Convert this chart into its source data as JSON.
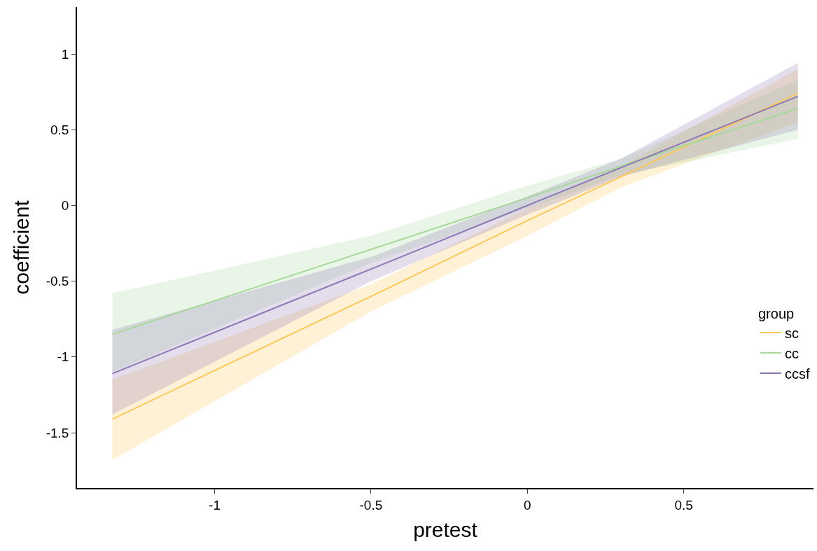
{
  "chart_data": {
    "type": "line",
    "xlabel": "pretest",
    "ylabel": "coefficient",
    "legend_title": "group",
    "legend": "right",
    "xlim": [
      -1.44,
      0.915
    ],
    "xticks": [
      -1,
      -0.5,
      0,
      0.5
    ],
    "ylim": [
      -1.865,
      1.31
    ],
    "yticks": [
      -1.5,
      -1,
      -0.5,
      0,
      0.5,
      1
    ],
    "x": [
      -1.327,
      -0.5,
      0,
      0.3,
      0.865
    ],
    "series": [
      {
        "name": "sc",
        "color": "#fdc85a",
        "values": [
          -1.41,
          -0.6,
          -0.1,
          0.19,
          0.74
        ],
        "lower": [
          -1.68,
          -0.7,
          -0.2,
          0.12,
          0.55
        ],
        "upper": [
          -1.15,
          -0.52,
          -0.02,
          0.26,
          0.9
        ]
      },
      {
        "name": "cc",
        "color": "#a6d89a",
        "values": [
          -0.85,
          -0.29,
          0.05,
          0.26,
          0.64
        ],
        "lower": [
          -1.1,
          -0.38,
          -0.02,
          0.2,
          0.44
        ],
        "upper": [
          -0.58,
          -0.2,
          0.13,
          0.31,
          0.83
        ]
      },
      {
        "name": "ccsf",
        "color": "#8e78b4",
        "values": [
          -1.11,
          -0.42,
          0.0,
          0.25,
          0.72
        ],
        "lower": [
          -1.38,
          -0.5,
          -0.06,
          0.19,
          0.5
        ],
        "upper": [
          -0.82,
          -0.34,
          0.06,
          0.31,
          0.94
        ]
      }
    ]
  }
}
